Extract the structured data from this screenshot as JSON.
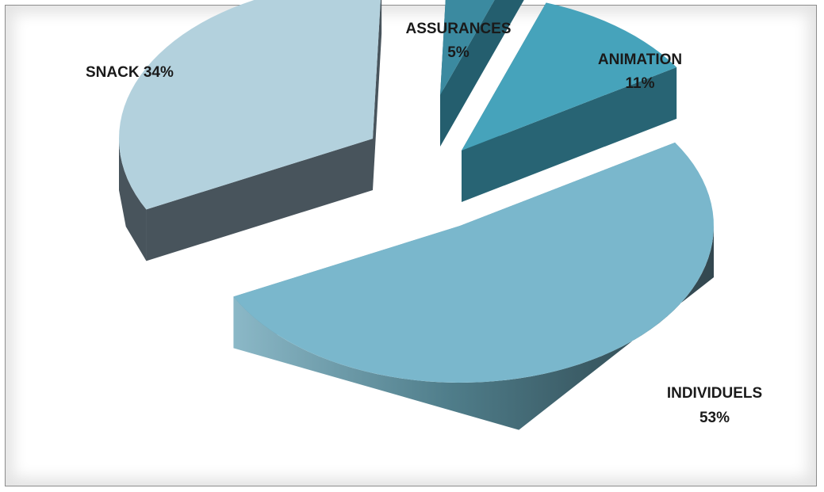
{
  "chart_data": {
    "type": "pie",
    "style": "3d-exploded",
    "title": "",
    "legend": "none",
    "categories": [
      "ASSURANCES",
      "ANIMATION",
      "INDIVIDUELS",
      "SNACK"
    ],
    "values": [
      5,
      11,
      53,
      34
    ],
    "labels": [
      {
        "line1": "ASSURANCES",
        "line2": "5%"
      },
      {
        "line1": "ANIMATION",
        "line2": "11%"
      },
      {
        "line1": "INDIVIDUELS",
        "line2": "53%"
      },
      {
        "line1": "SNACK  34%",
        "line2": ""
      }
    ],
    "colors": {
      "ASSURANCES": {
        "top": "#3b8aa0",
        "side": "#245e6e"
      },
      "ANIMATION": {
        "top": "#46a3bb",
        "side": "#286474"
      },
      "INDIVIDUELS": {
        "top": "#7ab7cc",
        "side": "#5a94a6"
      },
      "SNACK": {
        "top": "#b3d1dd",
        "side": "#48545c"
      }
    }
  }
}
